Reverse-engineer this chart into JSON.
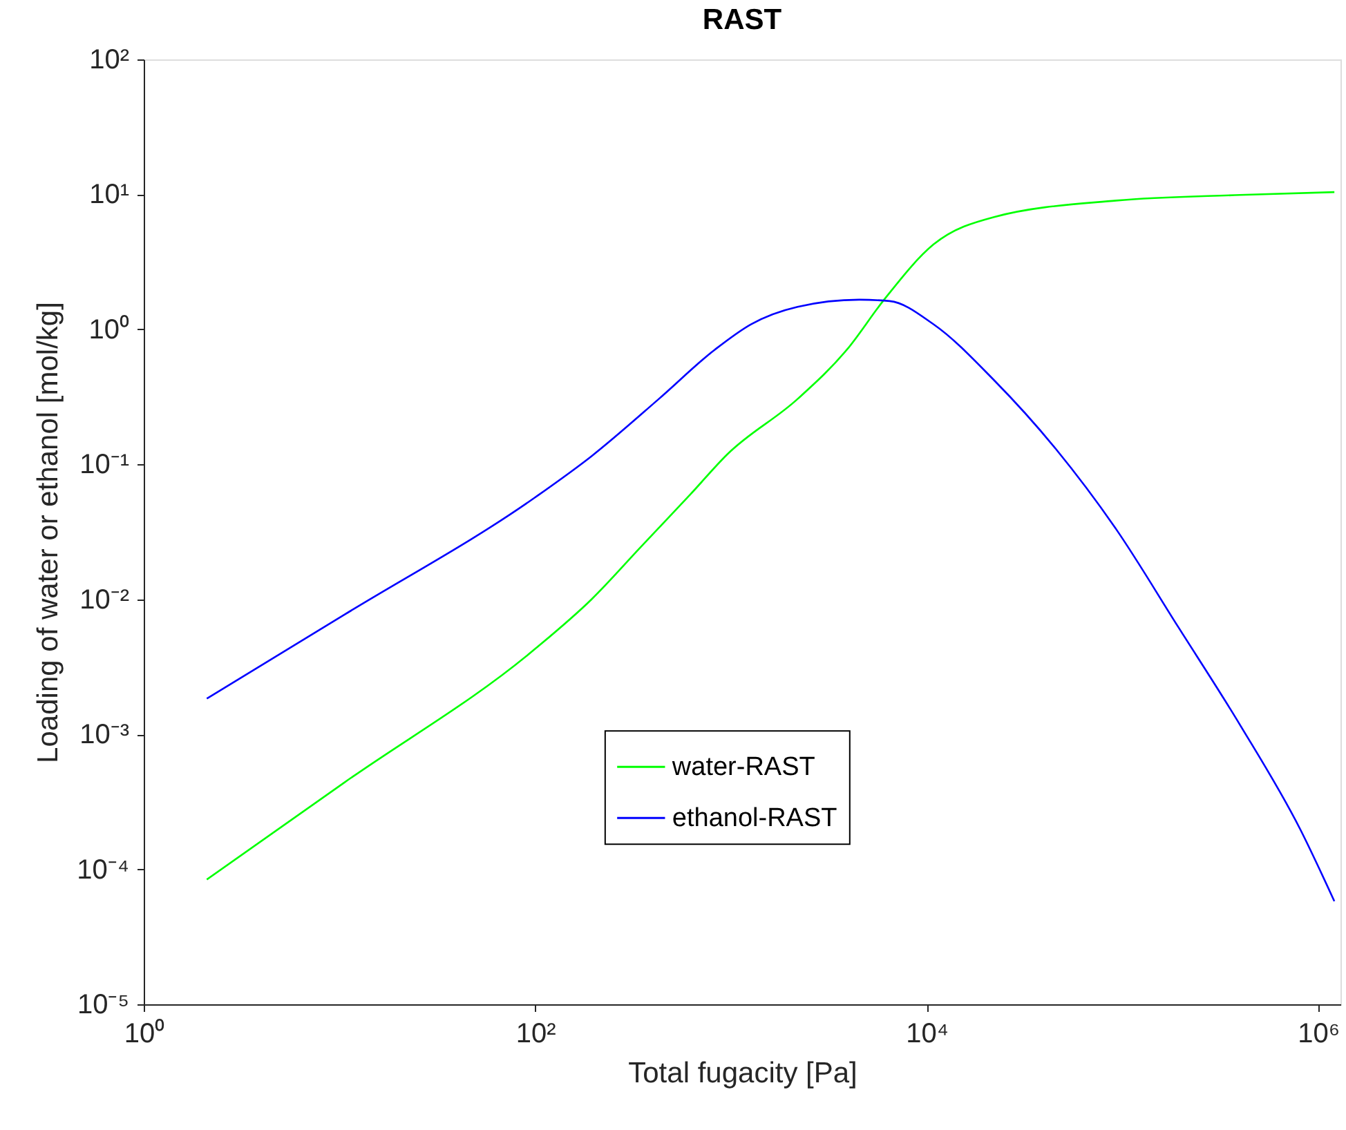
{
  "chart_data": {
    "type": "line",
    "title": "RAST",
    "xlabel": "Total fugacity [Pa]",
    "ylabel": "Loading of water or ethanol [mol/kg]",
    "log": "xy",
    "xlim": [
      1,
      1300000
    ],
    "ylim": [
      1e-05,
      100
    ],
    "xticks": [
      {
        "value": 1,
        "label": "10⁰"
      },
      {
        "value": 100,
        "label": "10²"
      },
      {
        "value": 10000,
        "label": "10⁴"
      },
      {
        "value": 1000000,
        "label": "10⁶"
      }
    ],
    "yticks": [
      {
        "value": 1e-05,
        "label": "10⁻⁵"
      },
      {
        "value": 0.0001,
        "label": "10⁻⁴"
      },
      {
        "value": 0.001,
        "label": "10⁻³"
      },
      {
        "value": 0.01,
        "label": "10⁻²"
      },
      {
        "value": 0.1,
        "label": "10⁻¹"
      },
      {
        "value": 1,
        "label": "10⁰"
      },
      {
        "value": 10,
        "label": "10¹"
      },
      {
        "value": 100,
        "label": "10²"
      }
    ],
    "grid": false,
    "legend": "bottom",
    "marker": "none",
    "line_style": "solid",
    "series": [
      {
        "name": "water-RAST",
        "color": "#00ff00",
        "x": [
          2.1,
          10.6,
          100,
          194,
          347,
          621,
          960,
          2190,
          3920,
          6060,
          10840,
          22100,
          93000,
          398000,
          1210000
        ],
        "values": [
          8.4e-05,
          0.00044,
          0.0043,
          0.01,
          0.0245,
          0.06,
          0.119,
          0.305,
          0.71,
          1.66,
          4.26,
          6.8,
          9.0,
          9.9,
          10.4
        ]
      },
      {
        "name": "ethanol-RAST",
        "color": "#0000ff",
        "x": [
          2.1,
          10.6,
          100,
          194,
          428,
          830,
          1265,
          2190,
          4530,
          6470,
          10840,
          22100,
          45700,
          93000,
          192000,
          398000,
          811000,
          1210000
        ],
        "values": [
          0.00184,
          0.0077,
          0.057,
          0.115,
          0.305,
          0.71,
          1.09,
          1.47,
          1.66,
          1.62,
          1.09,
          0.42,
          0.13,
          0.033,
          0.0063,
          0.00118,
          0.000197,
          5.8e-05
        ]
      }
    ]
  }
}
